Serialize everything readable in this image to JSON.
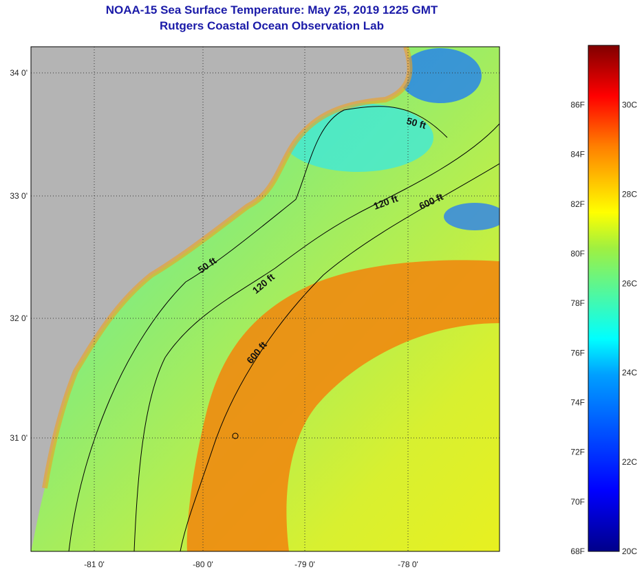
{
  "title": {
    "line1": "NOAA-15 Sea Surface Temperature:  May 25, 2019 1225 GMT",
    "line2": "Rutgers Coastal Ocean Observation Lab"
  },
  "axes": {
    "lon_ticks": [
      "-81 0'",
      "-80 0'",
      "-79 0'",
      "-78 0'"
    ],
    "lat_ticks": [
      "34 0'",
      "33 0'",
      "32 0'",
      "31 0'"
    ]
  },
  "contours": {
    "c50a": "50 ft",
    "c50b": "50 ft",
    "c120a": "120 ft",
    "c120b": "120 ft",
    "c600a": "600 ft",
    "c600b": "600 ft"
  },
  "colorbar": {
    "f_labels": [
      "86F",
      "84F",
      "82F",
      "80F",
      "78F",
      "76F",
      "74F",
      "72F",
      "70F",
      "68F"
    ],
    "c_labels": [
      "30C",
      "28C",
      "26C",
      "24C",
      "22C",
      "20C"
    ]
  },
  "colors": {
    "land": "#b4b4b4",
    "title": "#1a1aa8"
  }
}
